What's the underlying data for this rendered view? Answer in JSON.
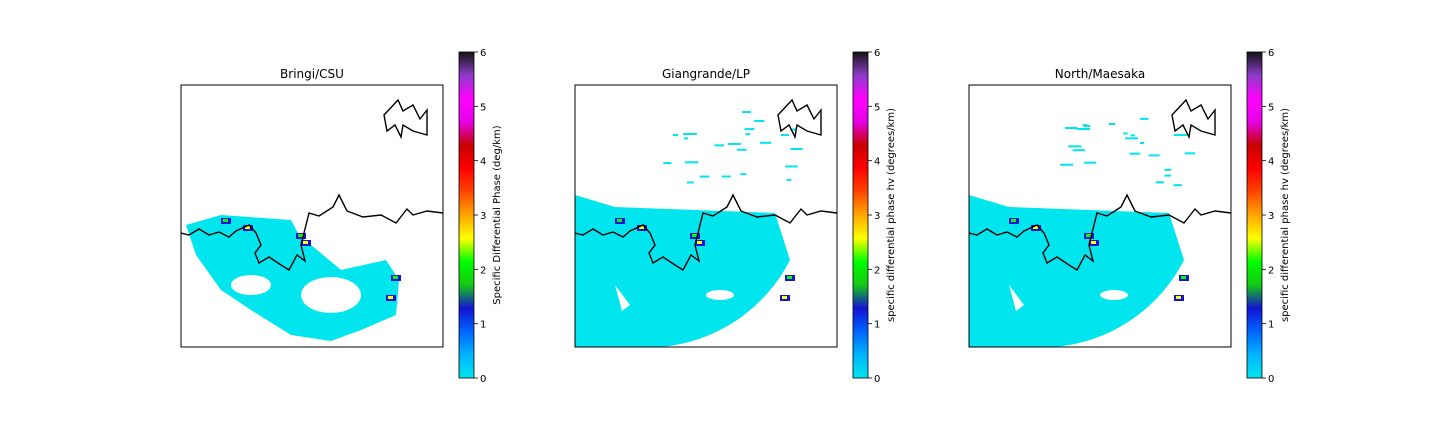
{
  "colormap_stops": [
    "#00e5ee",
    "#00b4ff",
    "#0064ff",
    "#1414d2",
    "#14c814",
    "#00ff00",
    "#ffff00",
    "#ffa500",
    "#ff4500",
    "#ff0000",
    "#c80000",
    "#e600e6",
    "#ff00ff",
    "#8c3cc8",
    "#141414"
  ],
  "coastline_color": "#000000",
  "chart_data": [
    {
      "type": "heatmap",
      "title": "Bringi/CSU",
      "colorbar": {
        "label": "Specific Differential Phase (deg/km)",
        "range": [
          0,
          6
        ],
        "ticks": [
          0,
          1,
          2,
          3,
          4,
          5,
          6
        ]
      },
      "grid": false,
      "axes_ticks_visible": false
    },
    {
      "type": "heatmap",
      "title": "Giangrande/LP",
      "colorbar": {
        "label": "specific differential phase hv (degrees/km)",
        "range": [
          0,
          6
        ],
        "ticks": [
          0,
          1,
          2,
          3,
          4,
          5,
          6
        ]
      },
      "grid": false,
      "axes_ticks_visible": false
    },
    {
      "type": "heatmap",
      "title": "North/Maesaka",
      "colorbar": {
        "label": "specific differential phase hv (degrees/km)",
        "range": [
          0,
          6
        ],
        "ticks": [
          0,
          1,
          2,
          3,
          4,
          5,
          6
        ]
      },
      "grid": false,
      "axes_ticks_visible": false
    }
  ]
}
